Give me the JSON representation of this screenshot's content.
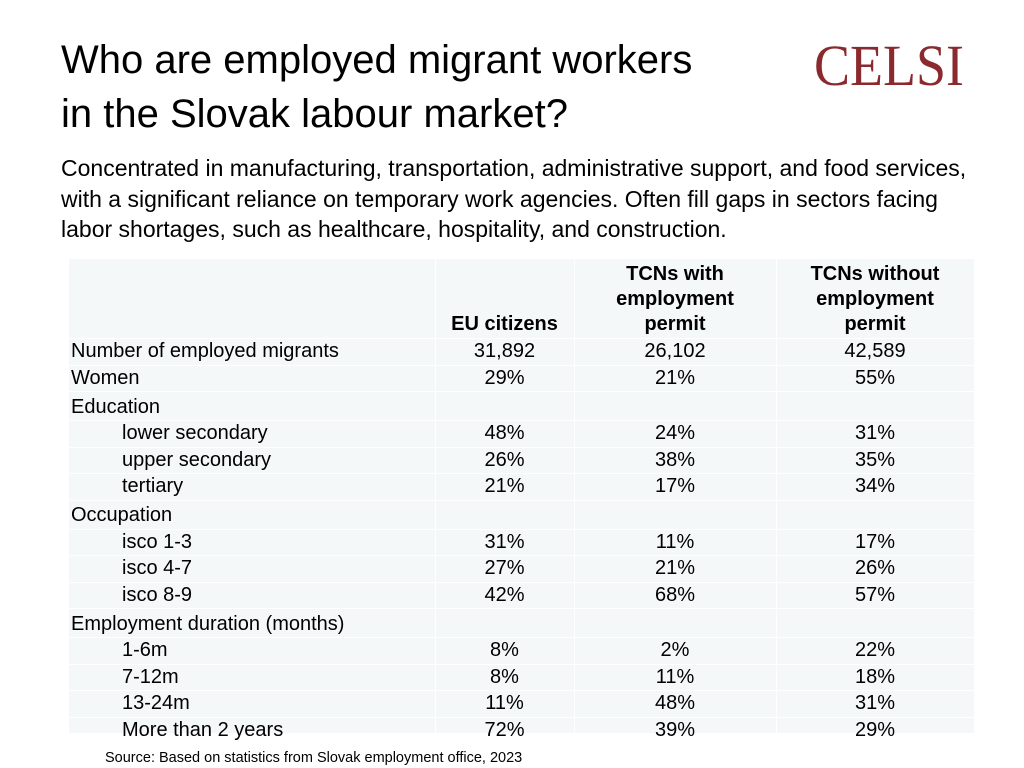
{
  "title_lines": [
    "Who are employed migrant workers",
    "in the Slovak labour market?"
  ],
  "logo": {
    "text": "CELSI",
    "color": "#8b2a2e"
  },
  "subtitle": "Concentrated in manufacturing, transportation, administrative support, and food services, with a significant reliance on temporary work agencies. Often fill gaps in sectors facing labor shortages, such as healthcare, hospitality, and construction.",
  "table": {
    "headers": [
      [],
      [
        "EU citizens"
      ],
      [
        "TCNs with",
        "employment",
        "permit"
      ],
      [
        "TCNs without",
        "employment",
        "permit"
      ]
    ],
    "rows": [
      {
        "label": "Number of employed migrants",
        "values": [
          "31,892",
          "26,102",
          "42,589"
        ]
      },
      {
        "label": "Women",
        "values": [
          "29%",
          "21%",
          "55%"
        ]
      },
      {
        "label": "Education",
        "values": [
          "",
          "",
          ""
        ]
      },
      {
        "label": "lower secondary",
        "values": [
          "48%",
          "24%",
          "31%"
        ]
      },
      {
        "label": "upper secondary",
        "values": [
          "26%",
          "38%",
          "35%"
        ]
      },
      {
        "label": "tertiary",
        "values": [
          "21%",
          "17%",
          "34%"
        ]
      },
      {
        "label": "Occupation",
        "values": [
          "",
          "",
          ""
        ]
      },
      {
        "label": "isco 1-3",
        "values": [
          "31%",
          "11%",
          "17%"
        ]
      },
      {
        "label": "isco 4-7",
        "values": [
          "27%",
          "21%",
          "26%"
        ]
      },
      {
        "label": "isco 8-9",
        "values": [
          "42%",
          "68%",
          "57%"
        ]
      },
      {
        "label": "Employment duration (months)",
        "values": [
          "",
          "",
          ""
        ]
      },
      {
        "label": "1-6m",
        "values": [
          "8%",
          "2%",
          "22%"
        ]
      },
      {
        "label": "7-12m",
        "values": [
          "8%",
          "11%",
          "18%"
        ]
      },
      {
        "label": "13-24m",
        "values": [
          "11%",
          "48%",
          "31%"
        ]
      },
      {
        "label": "More than 2 years",
        "values": [
          "72%",
          "39%",
          "29%"
        ]
      }
    ]
  },
  "source": "Source: Based on statistics from Slovak employment office, 2023"
}
